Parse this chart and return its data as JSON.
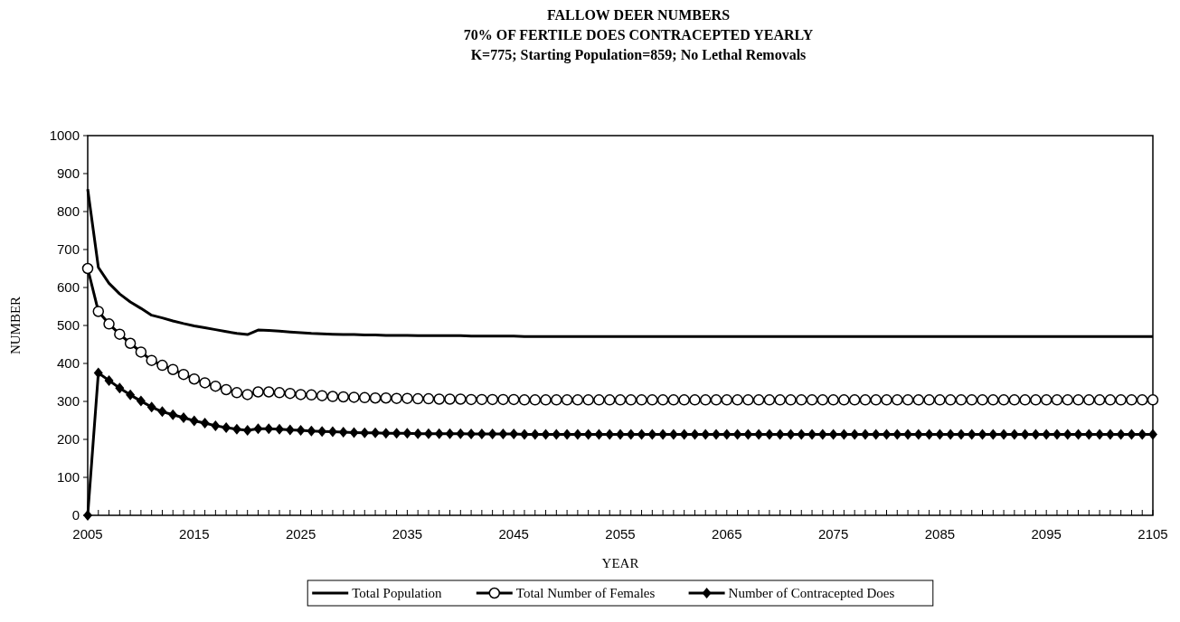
{
  "chart_data": {
    "type": "line",
    "title": "FALLOW DEER NUMBERS\n70% OF FERTILE DOES CONTRACEPTED YEARLY\nK=775; Starting Population=859; No Lethal Removals",
    "xlabel": "YEAR",
    "ylabel": "NUMBER",
    "x": [
      2005,
      2006,
      2007,
      2008,
      2009,
      2010,
      2011,
      2012,
      2013,
      2014,
      2015,
      2016,
      2017,
      2018,
      2019,
      2020,
      2021,
      2022,
      2023,
      2024,
      2025,
      2026,
      2027,
      2028,
      2029,
      2030,
      2031,
      2032,
      2033,
      2034,
      2035,
      2036,
      2037,
      2038,
      2039,
      2040,
      2041,
      2042,
      2043,
      2044,
      2045,
      2046,
      2047,
      2048,
      2049,
      2050,
      2051,
      2052,
      2053,
      2054,
      2055,
      2056,
      2057,
      2058,
      2059,
      2060,
      2061,
      2062,
      2063,
      2064,
      2065,
      2066,
      2067,
      2068,
      2069,
      2070,
      2071,
      2072,
      2073,
      2074,
      2075,
      2076,
      2077,
      2078,
      2079,
      2080,
      2081,
      2082,
      2083,
      2084,
      2085,
      2086,
      2087,
      2088,
      2089,
      2090,
      2091,
      2092,
      2093,
      2094,
      2095,
      2096,
      2097,
      2098,
      2099,
      2100,
      2101,
      2102,
      2103,
      2104,
      2105
    ],
    "series": [
      {
        "name": "Total Population",
        "color": "#000000",
        "marker": "none",
        "values": [
          859,
          653,
          611,
          583,
          562,
          545,
          527,
          520,
          512,
          505,
          499,
          494,
          489,
          484,
          479,
          476,
          488,
          487,
          485,
          483,
          481,
          479,
          478,
          477,
          476,
          476,
          475,
          475,
          474,
          474,
          474,
          473,
          473,
          473,
          473,
          473,
          472,
          472,
          472,
          472,
          472,
          471,
          471,
          471,
          471,
          471,
          471,
          471,
          471,
          471,
          471,
          471,
          471,
          471,
          471,
          471,
          471,
          471,
          471,
          471,
          471,
          471,
          471,
          471,
          471,
          471,
          471,
          471,
          471,
          471,
          471,
          471,
          471,
          471,
          471,
          471,
          471,
          471,
          471,
          471,
          471,
          471,
          471,
          471,
          471,
          471,
          471,
          471,
          471,
          471,
          471,
          471,
          471,
          471,
          471,
          471,
          471,
          471,
          471,
          471,
          471
        ]
      },
      {
        "name": "Total Number of Females",
        "color": "#000000",
        "marker": "circle",
        "values": [
          650,
          537,
          504,
          477,
          453,
          430,
          408,
          395,
          384,
          371,
          359,
          349,
          340,
          331,
          323,
          318,
          325,
          325,
          323,
          321,
          318,
          317,
          315,
          313,
          312,
          311,
          310,
          309,
          309,
          308,
          308,
          307,
          307,
          306,
          306,
          306,
          305,
          305,
          305,
          305,
          305,
          304,
          304,
          304,
          304,
          304,
          304,
          304,
          304,
          304,
          304,
          304,
          304,
          304,
          304,
          304,
          304,
          304,
          304,
          304,
          304,
          304,
          304,
          304,
          304,
          304,
          304,
          304,
          304,
          304,
          304,
          304,
          304,
          304,
          304,
          304,
          304,
          304,
          304,
          304,
          304,
          304,
          304,
          304,
          304,
          304,
          304,
          304,
          304,
          304,
          304,
          304,
          304,
          304,
          304,
          304,
          304,
          304,
          304,
          304,
          304
        ]
      },
      {
        "name": "Number of Contracepted Does",
        "color": "#000000",
        "marker": "diamond",
        "values": [
          0,
          375,
          355,
          335,
          317,
          301,
          285,
          273,
          265,
          257,
          249,
          243,
          236,
          231,
          227,
          224,
          228,
          228,
          227,
          225,
          224,
          222,
          221,
          220,
          219,
          218,
          217,
          217,
          216,
          216,
          216,
          215,
          215,
          215,
          215,
          215,
          214,
          214,
          214,
          214,
          214,
          213,
          213,
          213,
          213,
          213,
          213,
          213,
          213,
          213,
          213,
          213,
          213,
          213,
          213,
          213,
          213,
          213,
          213,
          213,
          213,
          213,
          213,
          213,
          213,
          213,
          213,
          213,
          213,
          213,
          213,
          213,
          213,
          213,
          213,
          213,
          213,
          213,
          213,
          213,
          213,
          213,
          213,
          213,
          213,
          213,
          213,
          213,
          213,
          213,
          213,
          213,
          213,
          213,
          213,
          213,
          213,
          213,
          213,
          213,
          213
        ]
      }
    ],
    "xlim": [
      2005,
      2105
    ],
    "xticks": [
      2005,
      {
        "value": 2006,
        "label": null
      },
      {
        "value": 2007,
        "label": null
      },
      {
        "value": 2008,
        "label": null
      },
      {
        "value": 2009,
        "label": null
      },
      {
        "value": 2010,
        "label": null
      },
      {
        "value": 2011,
        "label": null
      },
      {
        "value": 2012,
        "label": null
      },
      {
        "value": 2013,
        "label": null
      },
      {
        "value": 2014,
        "label": null
      },
      2015,
      {
        "value": 2016,
        "label": null
      },
      {
        "value": 2017,
        "label": null
      },
      {
        "value": 2018,
        "label": null
      },
      {
        "value": 2019,
        "label": null
      },
      {
        "value": 2020,
        "label": null
      },
      {
        "value": 2021,
        "label": null
      },
      {
        "value": 2022,
        "label": null
      },
      {
        "value": 2023,
        "label": null
      },
      {
        "value": 2024,
        "label": null
      },
      2025,
      {
        "value": 2026,
        "label": null
      },
      {
        "value": 2027,
        "label": null
      },
      {
        "value": 2028,
        "label": null
      },
      {
        "value": 2029,
        "label": null
      },
      {
        "value": 2030,
        "label": null
      },
      {
        "value": 2031,
        "label": null
      },
      {
        "value": 2032,
        "label": null
      },
      {
        "value": 2033,
        "label": null
      },
      {
        "value": 2034,
        "label": null
      },
      2035,
      {
        "value": 2036,
        "label": null
      },
      {
        "value": 2037,
        "label": null
      },
      {
        "value": 2038,
        "label": null
      },
      {
        "value": 2039,
        "label": null
      },
      {
        "value": 2040,
        "label": null
      },
      {
        "value": 2041,
        "label": null
      },
      {
        "value": 2042,
        "label": null
      },
      {
        "value": 2043,
        "label": null
      },
      {
        "value": 2044,
        "label": null
      },
      2045,
      {
        "value": 2046,
        "label": null
      },
      {
        "value": 2047,
        "label": null
      },
      {
        "value": 2048,
        "label": null
      },
      {
        "value": 2049,
        "label": null
      },
      {
        "value": 2050,
        "label": null
      },
      {
        "value": 2051,
        "label": null
      },
      {
        "value": 2052,
        "label": null
      },
      {
        "value": 2053,
        "label": null
      },
      {
        "value": 2054,
        "label": null
      },
      2055,
      {
        "value": 2056,
        "label": null
      },
      {
        "value": 2057,
        "label": null
      },
      {
        "value": 2058,
        "label": null
      },
      {
        "value": 2059,
        "label": null
      },
      {
        "value": 2060,
        "label": null
      },
      {
        "value": 2061,
        "label": null
      },
      {
        "value": 2062,
        "label": null
      },
      {
        "value": 2063,
        "label": null
      },
      {
        "value": 2064,
        "label": null
      },
      2065,
      {
        "value": 2066,
        "label": null
      },
      {
        "value": 2067,
        "label": null
      },
      {
        "value": 2068,
        "label": null
      },
      {
        "value": 2069,
        "label": null
      },
      {
        "value": 2070,
        "label": null
      },
      {
        "value": 2071,
        "label": null
      },
      {
        "value": 2072,
        "label": null
      },
      {
        "value": 2073,
        "label": null
      },
      {
        "value": 2074,
        "label": null
      },
      2075,
      {
        "value": 2076,
        "label": null
      },
      {
        "value": 2077,
        "label": null
      },
      {
        "value": 2078,
        "label": null
      },
      {
        "value": 2079,
        "label": null
      },
      {
        "value": 2080,
        "label": null
      },
      {
        "value": 2081,
        "label": null
      },
      {
        "value": 2082,
        "label": null
      },
      {
        "value": 2083,
        "label": null
      },
      {
        "value": 2084,
        "label": null
      },
      2085,
      {
        "value": 2086,
        "label": null
      },
      {
        "value": 2087,
        "label": null
      },
      {
        "value": 2088,
        "label": null
      },
      {
        "value": 2089,
        "label": null
      },
      {
        "value": 2090,
        "label": null
      },
      {
        "value": 2091,
        "label": null
      },
      {
        "value": 2092,
        "label": null
      },
      {
        "value": 2093,
        "label": null
      },
      {
        "value": 2094,
        "label": null
      },
      2095,
      {
        "value": 2096,
        "label": null
      },
      {
        "value": 2097,
        "label": null
      },
      {
        "value": 2098,
        "label": null
      },
      {
        "value": 2099,
        "label": null
      },
      {
        "value": 2100,
        "label": null
      },
      {
        "value": 2101,
        "label": null
      },
      {
        "value": 2102,
        "label": null
      },
      {
        "value": 2103,
        "label": null
      },
      {
        "value": 2104,
        "label": null
      },
      2105
    ],
    "ylim": [
      0,
      1000
    ],
    "yticks": [
      0,
      100,
      200,
      300,
      400,
      500,
      600,
      700,
      800,
      900,
      1000
    ],
    "legend": "bottom",
    "line_style": "solid"
  }
}
